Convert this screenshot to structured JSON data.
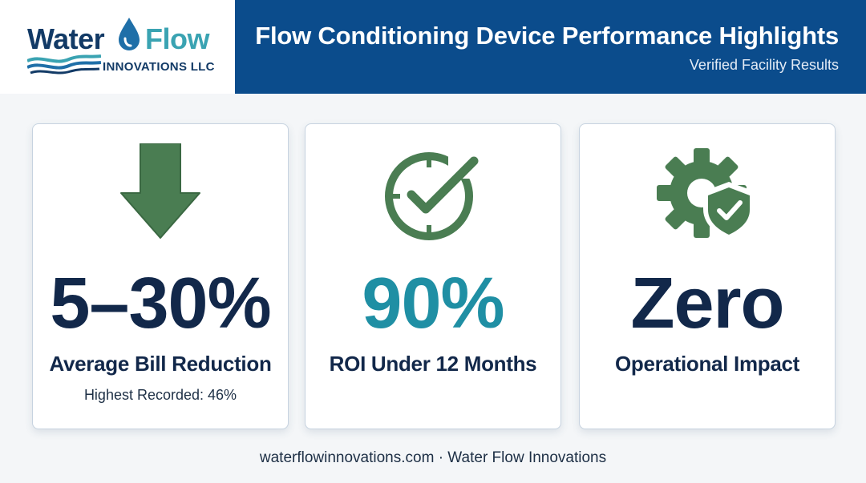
{
  "logo": {
    "word1": "Water",
    "word2": "Flow",
    "subtitle": "INNOVATIONS LLC"
  },
  "header": {
    "title": "Flow Conditioning Device Performance Highlights",
    "subtitle": "Verified Facility Results"
  },
  "cards": [
    {
      "icon": "arrow-down-icon",
      "value": "5–30%",
      "label": "Average Bill Reduction",
      "sublabel": "Highest Recorded: 46%"
    },
    {
      "icon": "clock-check-icon",
      "value": "90%",
      "label": "ROI Under 12 Months"
    },
    {
      "icon": "gear-shield-icon",
      "value": "Zero",
      "label": "Operational Impact"
    }
  ],
  "colors": {
    "banner": "#0b4c8c",
    "navy": "#12284a",
    "teal": "#1f8fa4",
    "icon_green": "#4a7d52"
  },
  "footer": {
    "text": "waterflowinnovations.com · Water Flow Innovations"
  }
}
